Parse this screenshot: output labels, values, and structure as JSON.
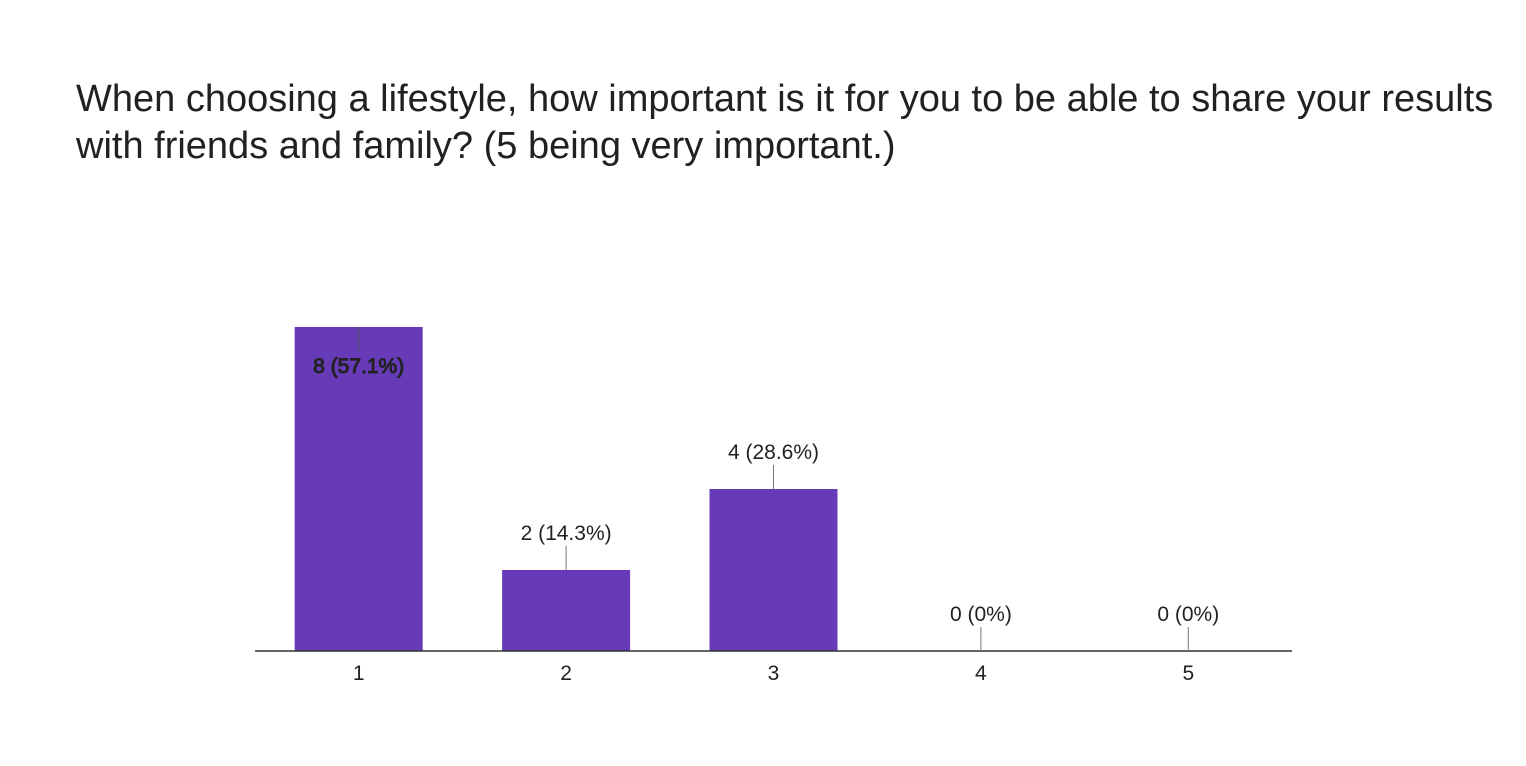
{
  "title": "When choosing a lifestyle, how important is it for you to be able to share your results with friends and family? (5 being very important.)",
  "chart_data": {
    "type": "bar",
    "title": "When choosing a lifestyle, how important is it for you to be able to share your results with friends and family? (5 being very important.)",
    "categories": [
      "1",
      "2",
      "3",
      "4",
      "5"
    ],
    "values": [
      8,
      2,
      4,
      0,
      0
    ],
    "data_labels": [
      "8 (57.1%)",
      "2 (14.3%)",
      "4 (28.6%)",
      "0 (0%)",
      "0 (0%)"
    ],
    "xlabel": "",
    "ylabel": "",
    "ylim": [
      0,
      8
    ],
    "grid": false,
    "legend": "none",
    "bar_color": "#673ab7"
  }
}
